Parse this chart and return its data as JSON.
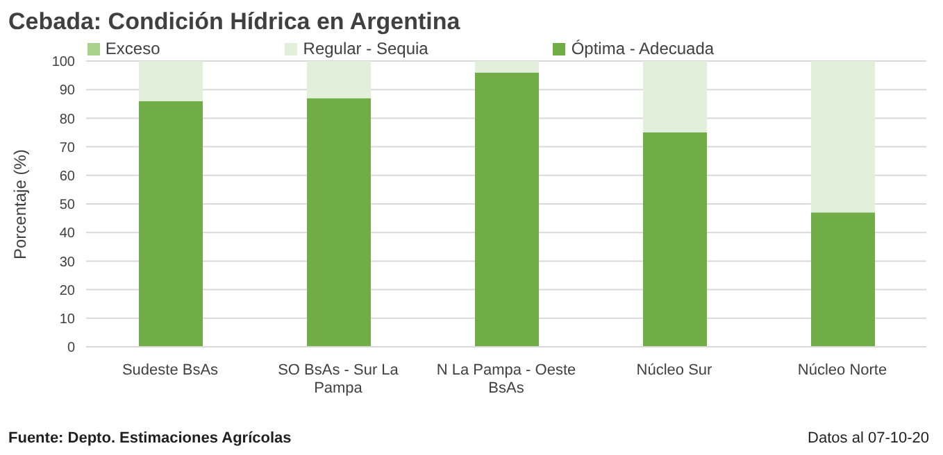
{
  "chart_data": {
    "type": "bar",
    "title": "Cebada: Condición Hídrica en Argentina",
    "ylabel": "Porcentaje (%)",
    "categories": [
      "Sudeste BsAs",
      "SO BsAs - Sur La Pampa",
      "N La Pampa - Oeste BsAs",
      "Núcleo Sur",
      "Núcleo Norte"
    ],
    "series": [
      {
        "name": "Óptima - Adecuada",
        "color": "#70ad47",
        "values": [
          86,
          87,
          96,
          75,
          47
        ]
      },
      {
        "name": "Regular - Sequia",
        "color": "#e2efda",
        "values": [
          14,
          13,
          4,
          25,
          53
        ]
      },
      {
        "name": "Exceso",
        "color": "#a9d18e",
        "values": [
          0,
          0,
          0,
          0,
          0
        ]
      }
    ],
    "stacked": true,
    "ylim": [
      0,
      100
    ],
    "yticks": [
      0,
      10,
      20,
      30,
      40,
      50,
      60,
      70,
      80,
      90,
      100
    ],
    "grid": "y",
    "legend": "top",
    "annotations": [
      "Fuente: Depto. Estimaciones Agrícolas",
      "Datos al 07-10-20"
    ]
  }
}
